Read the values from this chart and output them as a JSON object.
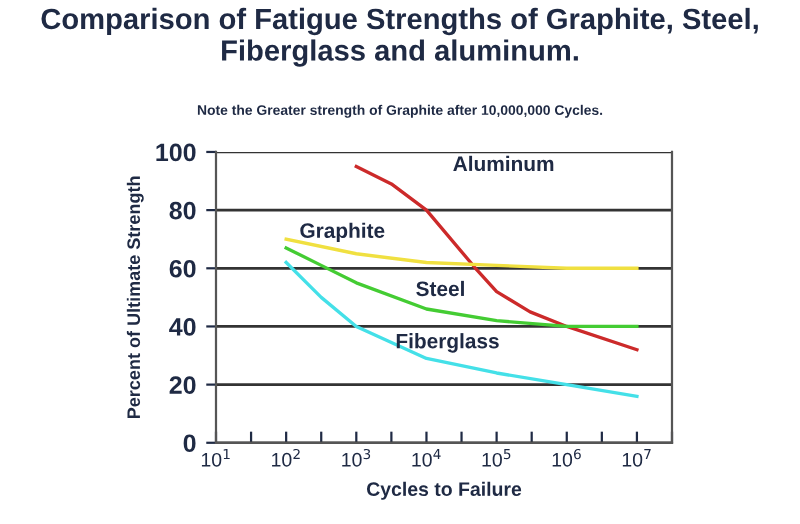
{
  "chart_data": {
    "type": "line",
    "title": "Comparison of Fatigue Strengths of Graphite, Steel, Fiberglass and aluminum.",
    "subtitle": "Note the Greater strength of Graphite after 10,000,000 Cycles.",
    "xlabel": "Cycles to Failure",
    "ylabel": "Percent of Ultimate Strength",
    "log": "x",
    "xlim": [
      10,
      31622777
    ],
    "ylim": [
      0,
      100
    ],
    "xticks": [
      {
        "value": 10,
        "label": "10$^{1}$"
      },
      {
        "value": 31.62,
        "label": null
      },
      {
        "value": 100,
        "label": "10$^{2}$"
      },
      {
        "value": 316.2,
        "label": null
      },
      {
        "value": 1000,
        "label": "10$^{3}$"
      },
      {
        "value": 3162,
        "label": null
      },
      {
        "value": 10000,
        "label": "10$^{4}$"
      },
      {
        "value": 31623,
        "label": null
      },
      {
        "value": 100000,
        "label": "10$^{5}$"
      },
      {
        "value": 316228,
        "label": null
      },
      {
        "value": 1000000,
        "label": "10$^{6}$"
      },
      {
        "value": 3162278,
        "label": null
      },
      {
        "value": 10000000,
        "label": "10$^{7}$"
      },
      {
        "value": 31622777,
        "label": null
      }
    ],
    "yticks": [
      0,
      20,
      40,
      60,
      80,
      100
    ],
    "grid": "y",
    "marker": "none",
    "line_style": "solid",
    "series": [
      {
        "name": "Aluminum",
        "color": "#cc2a2a",
        "x": [
          1000,
          3162,
          10000,
          50000,
          100000,
          300000,
          1000000,
          10000000
        ],
        "values": [
          95,
          89,
          80,
          60,
          52,
          45,
          40,
          32
        ]
      },
      {
        "name": "Graphite",
        "color": "#f0e040",
        "x": [
          100,
          1000,
          10000,
          100000,
          1000000,
          10000000
        ],
        "values": [
          70,
          65,
          62,
          61,
          60,
          60
        ]
      },
      {
        "name": "Steel",
        "color": "#44cc33",
        "x": [
          100,
          316.2,
          1000,
          10000,
          100000,
          1000000,
          10000000
        ],
        "values": [
          67,
          61,
          55,
          46,
          42,
          40,
          40
        ]
      },
      {
        "name": "Fiberglass",
        "color": "#44e0e8",
        "x": [
          100,
          316.2,
          1000,
          10000,
          100000,
          1000000,
          10000000
        ],
        "values": [
          62,
          50,
          40,
          29,
          24,
          20,
          16
        ]
      }
    ]
  }
}
